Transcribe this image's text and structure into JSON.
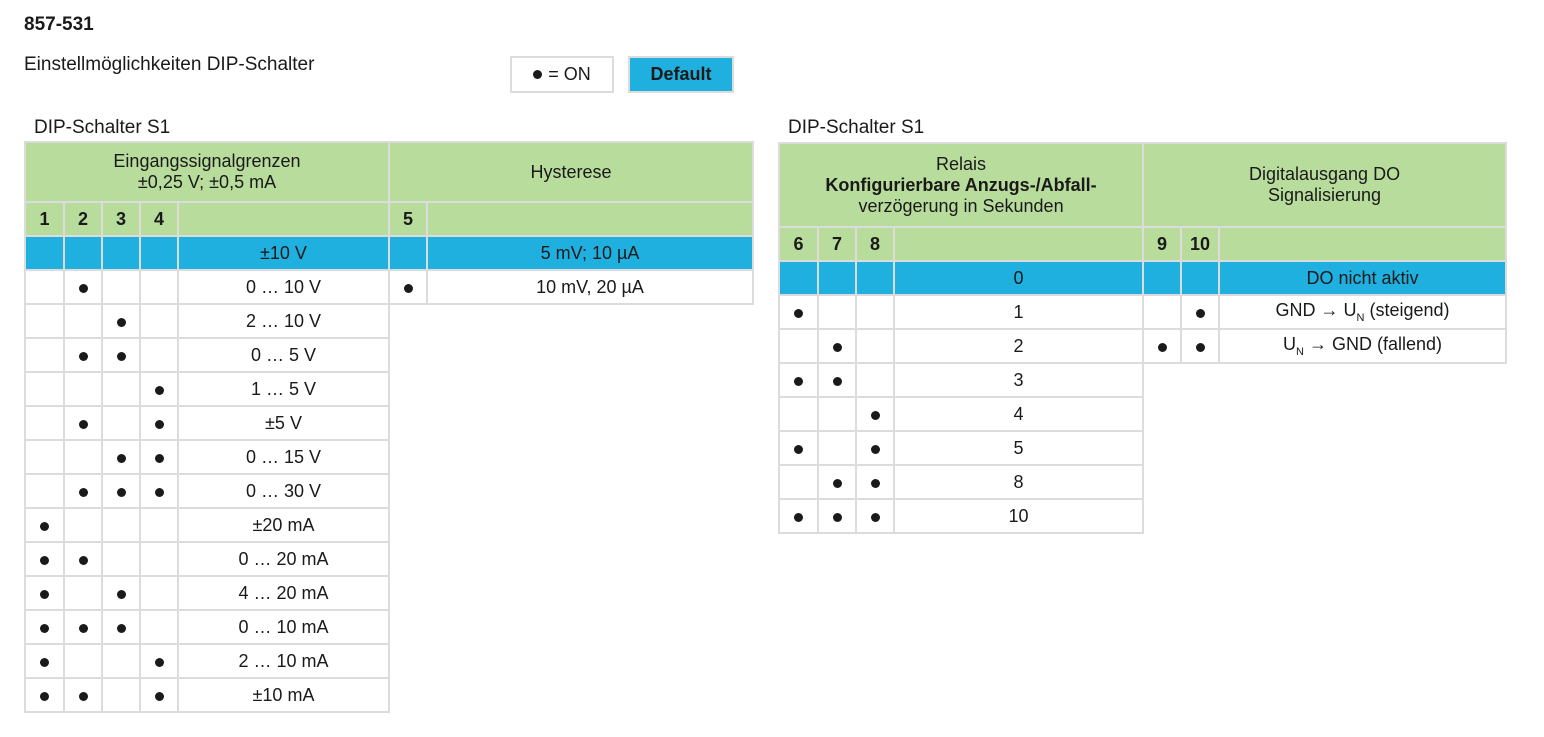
{
  "product_id": "857-531",
  "subtitle": "Einstellmöglichkeiten DIP-Schalter",
  "legend": {
    "on_label": "= ON",
    "default_label": "Default"
  },
  "table_left": {
    "caption": "DIP-Schalter S1",
    "header_input_line1": "Eingangssignalgrenzen",
    "header_input_line2": "±0,25 V; ±0,5 mA",
    "header_hysteresis": "Hysterese",
    "switches_input": [
      "1",
      "2",
      "3",
      "4"
    ],
    "switch_hysteresis": "5",
    "input_rows": [
      {
        "s1": false,
        "s2": false,
        "s3": false,
        "s4": false,
        "label": "±10 V",
        "default": true
      },
      {
        "s1": false,
        "s2": true,
        "s3": false,
        "s4": false,
        "label": "0 … 10 V"
      },
      {
        "s1": false,
        "s2": false,
        "s3": true,
        "s4": false,
        "label": "2 … 10 V"
      },
      {
        "s1": false,
        "s2": true,
        "s3": true,
        "s4": false,
        "label": "0 … 5 V"
      },
      {
        "s1": false,
        "s2": false,
        "s3": false,
        "s4": true,
        "label": "1 … 5 V"
      },
      {
        "s1": false,
        "s2": true,
        "s3": false,
        "s4": true,
        "label": "±5 V"
      },
      {
        "s1": false,
        "s2": false,
        "s3": true,
        "s4": true,
        "label": "0 … 15 V"
      },
      {
        "s1": false,
        "s2": true,
        "s3": true,
        "s4": true,
        "label": "0 … 30 V"
      },
      {
        "s1": true,
        "s2": false,
        "s3": false,
        "s4": false,
        "label": "±20 mA"
      },
      {
        "s1": true,
        "s2": true,
        "s3": false,
        "s4": false,
        "label": "0 … 20 mA"
      },
      {
        "s1": true,
        "s2": false,
        "s3": true,
        "s4": false,
        "label": "4 … 20 mA"
      },
      {
        "s1": true,
        "s2": true,
        "s3": true,
        "s4": false,
        "label": "0 … 10 mA"
      },
      {
        "s1": true,
        "s2": false,
        "s3": false,
        "s4": true,
        "label": "2 … 10 mA"
      },
      {
        "s1": true,
        "s2": true,
        "s3": false,
        "s4": true,
        "label": "±10 mA"
      }
    ],
    "hysteresis_rows": [
      {
        "s5": false,
        "label": "5 mV; 10 µA",
        "default": true
      },
      {
        "s5": true,
        "label": "10 mV, 20 µA"
      }
    ]
  },
  "table_right": {
    "caption": "DIP-Schalter S1",
    "header_relay_line1": "Relais",
    "header_relay_line2": "Konfigurierbare Anzugs-/Abfall-",
    "header_relay_line3": "verzögerung in Sekunden",
    "header_do_line1": "Digitalausgang DO",
    "header_do_line2": "Signalisierung",
    "switches_relay": [
      "6",
      "7",
      "8"
    ],
    "switches_do": [
      "9",
      "10"
    ],
    "relay_rows": [
      {
        "s6": false,
        "s7": false,
        "s8": false,
        "label": "0",
        "default": true
      },
      {
        "s6": true,
        "s7": false,
        "s8": false,
        "label": "1"
      },
      {
        "s6": false,
        "s7": true,
        "s8": false,
        "label": "2"
      },
      {
        "s6": true,
        "s7": true,
        "s8": false,
        "label": "3"
      },
      {
        "s6": false,
        "s7": false,
        "s8": true,
        "label": "4"
      },
      {
        "s6": true,
        "s7": false,
        "s8": true,
        "label": "5"
      },
      {
        "s6": false,
        "s7": true,
        "s8": true,
        "label": "8"
      },
      {
        "s6": true,
        "s7": true,
        "s8": true,
        "label": "10"
      }
    ],
    "do_rows": [
      {
        "s9": false,
        "s10": false,
        "label": "DO nicht aktiv",
        "default": true
      },
      {
        "s9": false,
        "s10": true,
        "pre": "GND → U",
        "sub": "N",
        "post": " (steigend)"
      },
      {
        "s9": true,
        "s10": true,
        "pre": "U",
        "sub": "N",
        "post": " → GND (fallend)"
      }
    ]
  },
  "colors": {
    "header_green": "#b8dc9c",
    "default_blue": "#1fb0e0",
    "border_grey": "#dcdcdc"
  }
}
